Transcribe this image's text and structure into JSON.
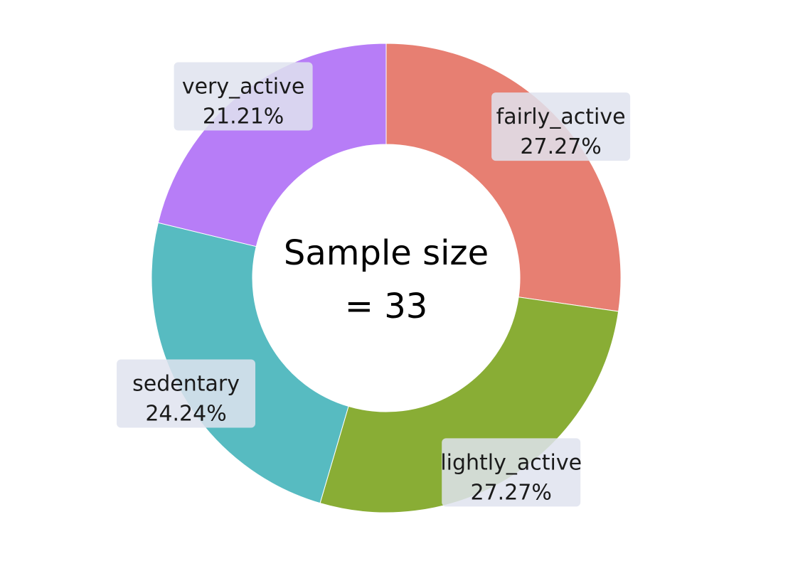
{
  "chart_data": {
    "type": "pie",
    "donut": true,
    "title": "",
    "center_text": {
      "line1": "Sample size",
      "line2": "= 33"
    },
    "slices": [
      {
        "name": "fairly_active",
        "value": 27.27,
        "label": "27.27%",
        "color": "#e77f72"
      },
      {
        "name": "lightly_active",
        "value": 27.27,
        "label": "27.27%",
        "color": "#89ad35"
      },
      {
        "name": "sedentary",
        "value": 24.24,
        "label": "24.24%",
        "color": "#57bbc1"
      },
      {
        "name": "very_active",
        "value": 21.21,
        "label": "21.21%",
        "color": "#b77df7"
      }
    ],
    "start_angle": "top",
    "direction": "clockwise",
    "label_box_color": "#dfe3ee"
  }
}
